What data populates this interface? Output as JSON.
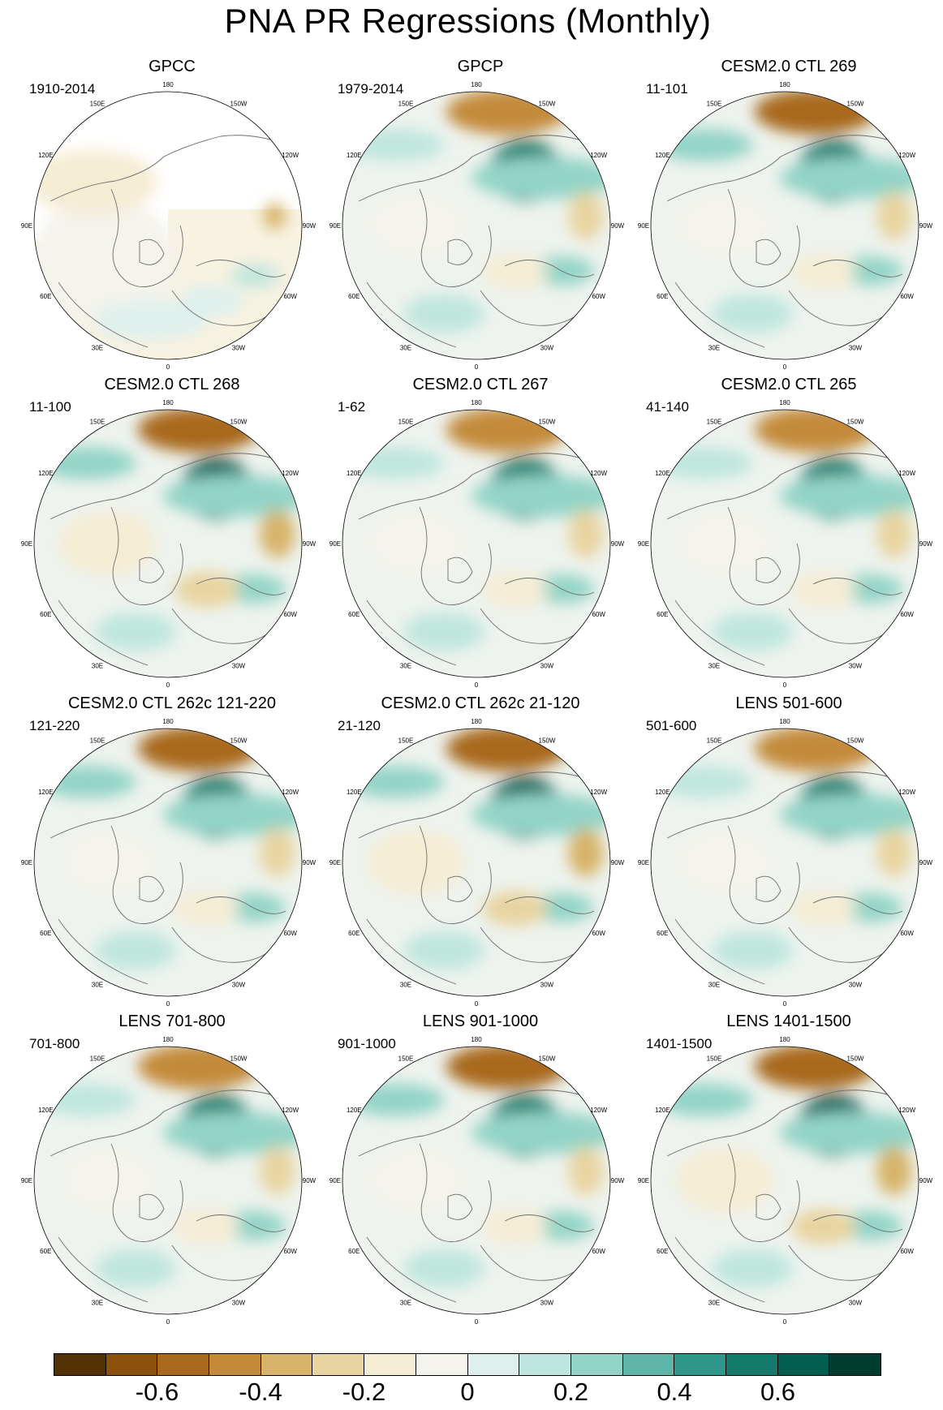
{
  "title": "PNA PR Regressions (Monthly)",
  "longitude_labels": {
    "lon_180": "180",
    "lon_150E": "150E",
    "lon_120E": "120E",
    "lon_90E": "90E",
    "lon_60E": "60E",
    "lon_30E": "30E",
    "lon_0": "0",
    "lon_30W": "30W",
    "lon_60W": "60W",
    "lon_90W": "90W",
    "lon_120W": "120W",
    "lon_150W": "150W"
  },
  "panels": [
    {
      "title": "GPCC",
      "period": "1910-2014"
    },
    {
      "title": "GPCP",
      "period": "1979-2014"
    },
    {
      "title": "CESM2.0 CTL 269",
      "period": "11-101"
    },
    {
      "title": "CESM2.0 CTL 268",
      "period": "11-100"
    },
    {
      "title": "CESM2.0 CTL 267",
      "period": "1-62"
    },
    {
      "title": "CESM2.0 CTL 265",
      "period": "41-140"
    },
    {
      "title": "CESM2.0 CTL 262c 121-220",
      "period": "121-220"
    },
    {
      "title": "CESM2.0 CTL 262c 21-120",
      "period": "21-120"
    },
    {
      "title": "LENS 501-600",
      "period": "501-600"
    },
    {
      "title": "LENS 701-800",
      "period": "701-800"
    },
    {
      "title": "LENS 901-1000",
      "period": "901-1000"
    },
    {
      "title": "LENS 1401-1500",
      "period": "1401-1500"
    }
  ],
  "colorbar": {
    "colors": [
      "#543005",
      "#8c510a",
      "#a8691c",
      "#c38a3a",
      "#d7b46a",
      "#e8d4a0",
      "#f5ecd4",
      "#f4f3ec",
      "#def0ed",
      "#bfe6de",
      "#93d4c6",
      "#5fb5a8",
      "#2e968b",
      "#137a6c",
      "#035e52",
      "#003c30"
    ],
    "tick_labels": [
      "-0.6",
      "-0.4",
      "-0.2",
      "0",
      "0.2",
      "0.4",
      "0.6"
    ]
  }
}
